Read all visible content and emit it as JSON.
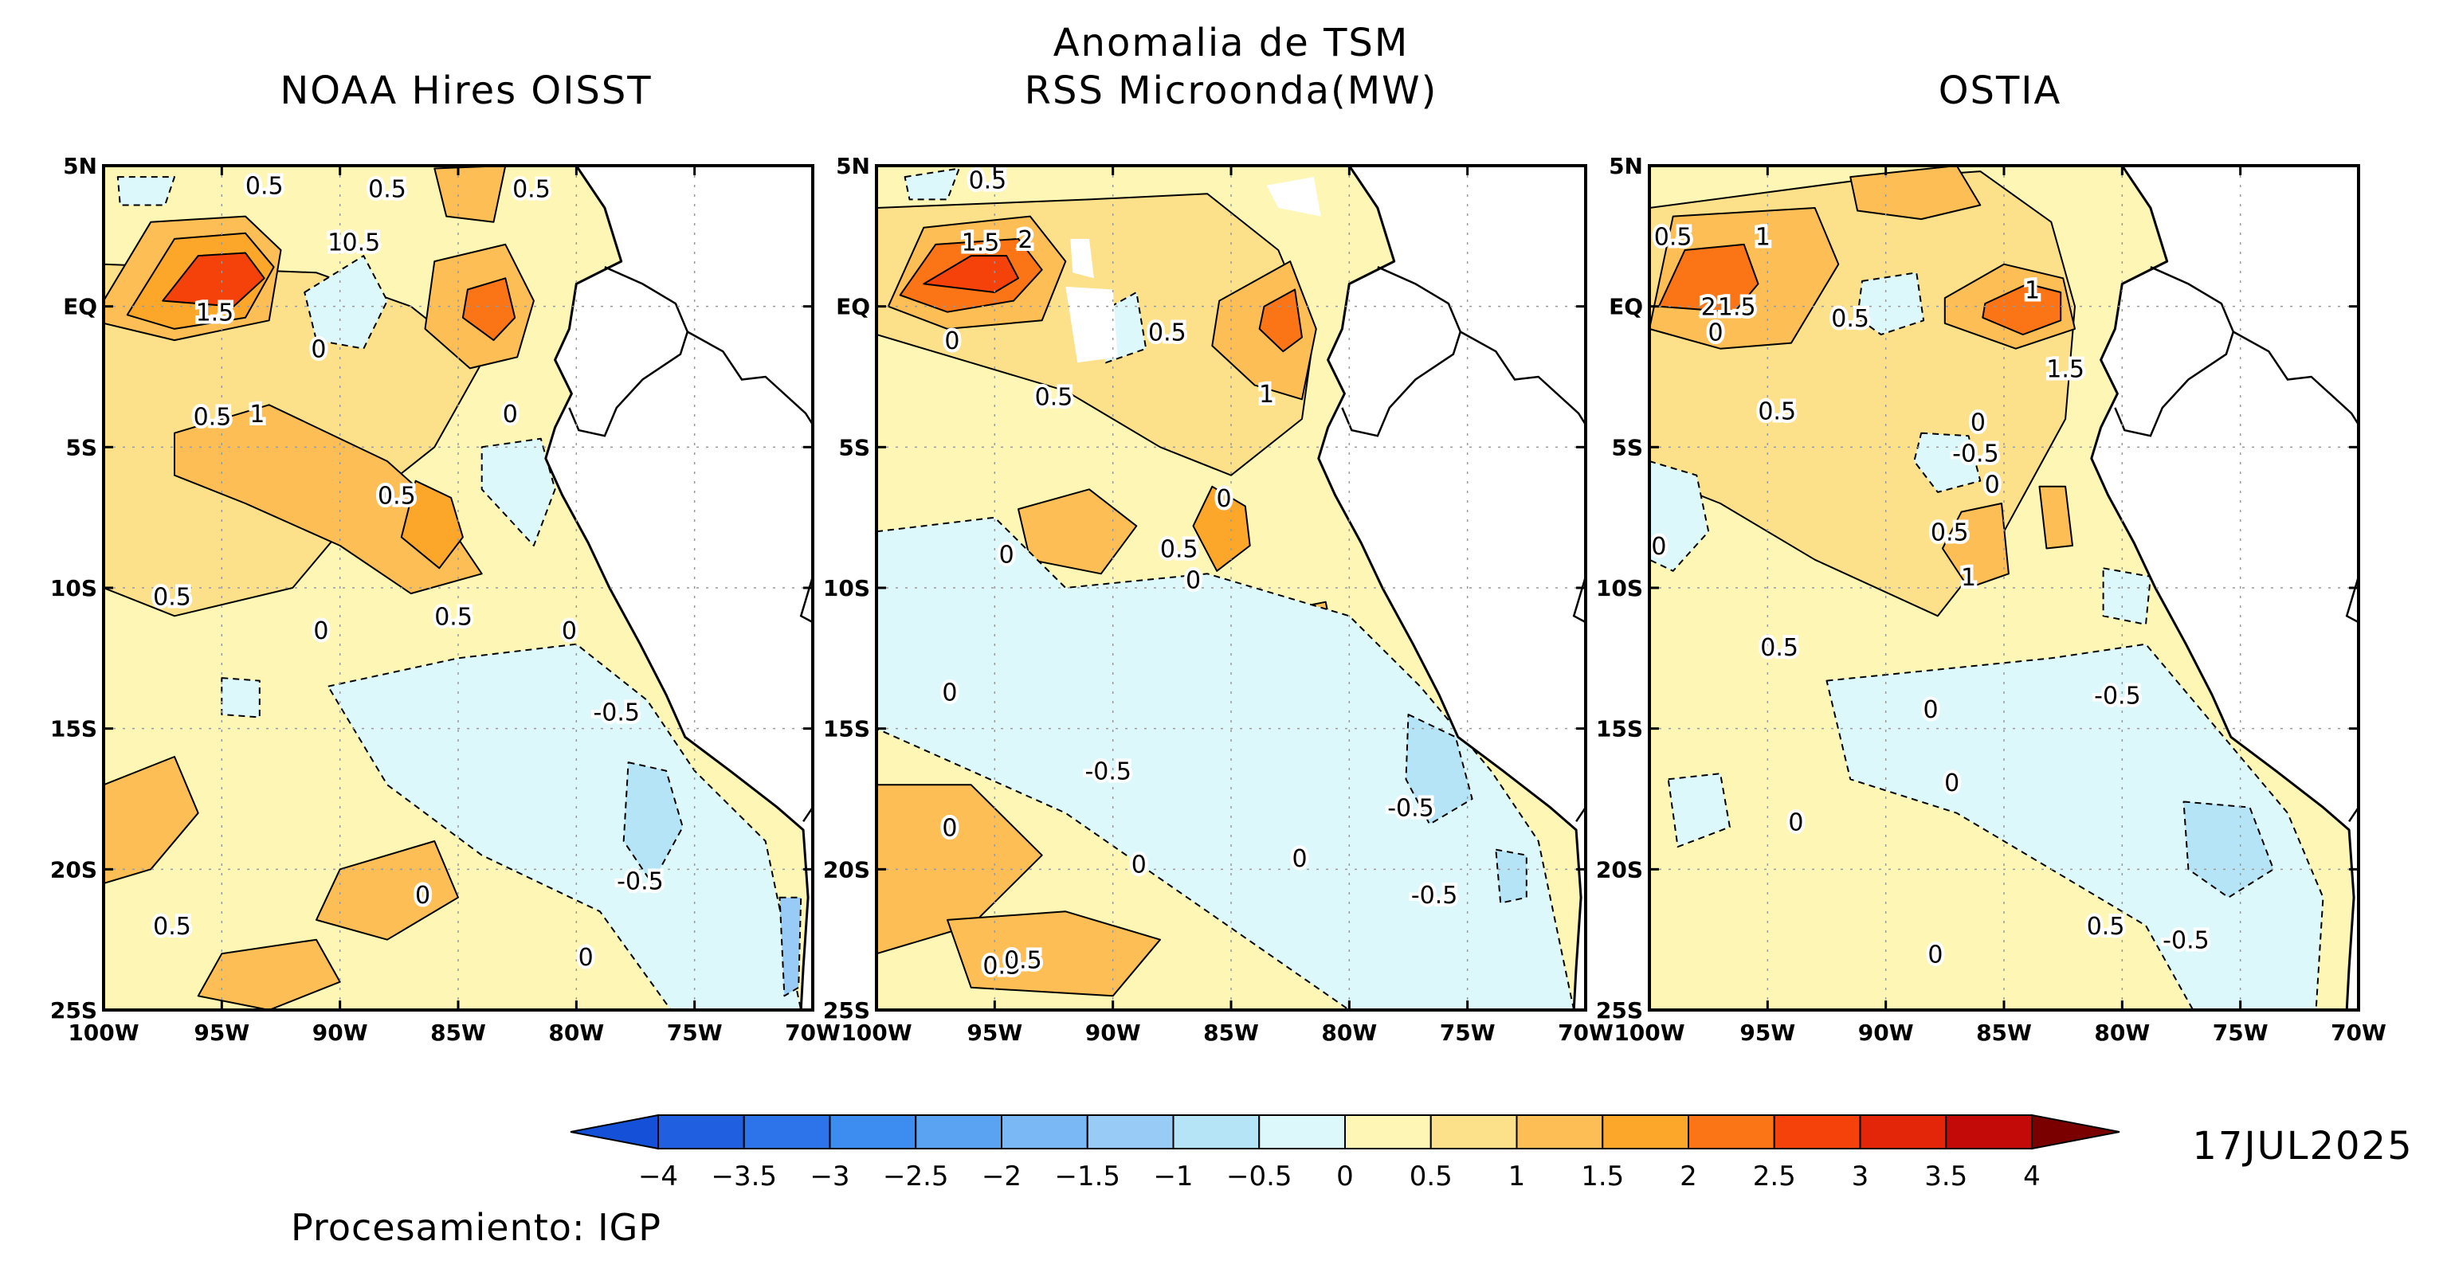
{
  "title": {
    "line1": "Anomalia de TSM",
    "line2": "RSS Microonda(MW)"
  },
  "panels": [
    {
      "title": "NOAA Hires OISST",
      "contour_labels": [
        "0.5",
        "0.5",
        "1",
        "0.5",
        "1.5",
        "0",
        "0.5",
        "1",
        "0",
        "0.5",
        "0.5",
        "0.5",
        "0",
        "0",
        "-0.5",
        "-0.5",
        "0.5",
        "0",
        "0.5",
        "0"
      ]
    },
    {
      "title": "",
      "contour_labels": [
        "0.5",
        "1.5",
        "2",
        "0",
        "0.5",
        "1",
        "0.5",
        "0",
        "0",
        "0.5",
        "0",
        "0",
        "-0.5",
        "0",
        "0",
        "-0.5",
        "0",
        "-0.5",
        "0.5",
        "0.5"
      ]
    },
    {
      "title": "OSTIA",
      "contour_labels": [
        "0.5",
        "1",
        "2",
        "1.5",
        "0",
        "0.5",
        "1",
        "1.5",
        "0.5",
        "0",
        "-0.5",
        "0",
        "0.5",
        "1",
        "0",
        "0.5",
        "0",
        "-0.5",
        "0",
        "0",
        "0.5",
        "0",
        "-0.5"
      ]
    }
  ],
  "axes": {
    "lat_ticks": [
      "5N",
      "EQ",
      "5S",
      "10S",
      "15S",
      "20S",
      "25S"
    ],
    "lon_ticks": [
      "100W",
      "95W",
      "90W",
      "85W",
      "80W",
      "75W",
      "70W"
    ],
    "lat_range": [
      -25,
      5
    ],
    "lon_range": [
      -100,
      -70
    ]
  },
  "colorbar": {
    "labels": [
      "−4",
      "−3.5",
      "−3",
      "−2.5",
      "−2",
      "−1.5",
      "−1",
      "−0.5",
      "0",
      "0.5",
      "1",
      "1.5",
      "2",
      "2.5",
      "3",
      "3.5",
      "4"
    ],
    "colors": [
      "#1f5fe0",
      "#2d74ea",
      "#3d8cf0",
      "#5aa3f2",
      "#79b8f5",
      "#98ccf6",
      "#b4e4f6",
      "#dcf8fb",
      "#fdf6b4",
      "#fde08a",
      "#fdbf55",
      "#fca62a",
      "#fb7416",
      "#f5420a",
      "#e3250a",
      "#c40a08",
      "#8f0000"
    ],
    "low_color": "#1450d8",
    "high_color": "#7a0000"
  },
  "date": "17JUL2025",
  "credit": "Procesamiento: IGP",
  "colors": {
    "land": "#ffffff",
    "frame": "#000000"
  }
}
